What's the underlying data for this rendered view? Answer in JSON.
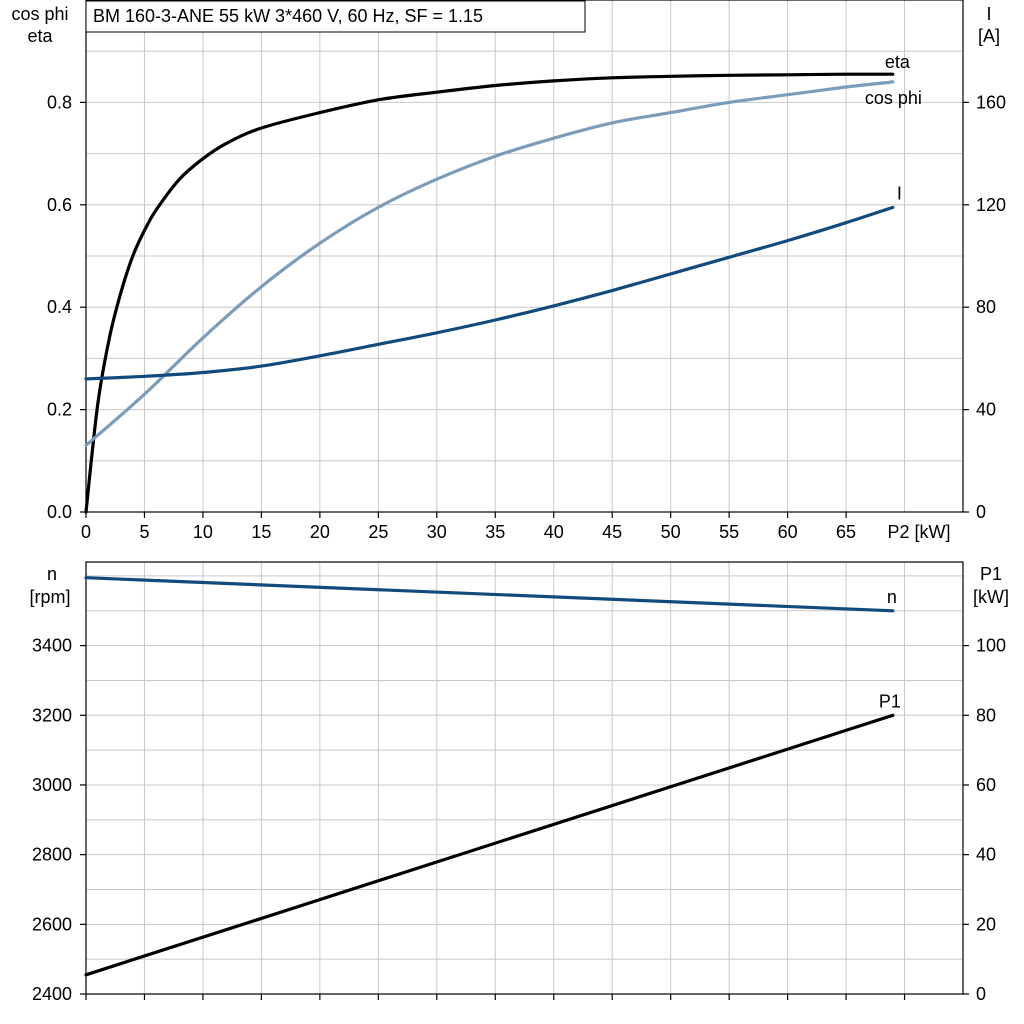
{
  "title": "BM 160-3-ANE   55 kW   3*460 V, 60 Hz, SF = 1.15",
  "colors": {
    "eta": "#000000",
    "cosphi": "#7b9cba",
    "current": "#114a7c",
    "speed": "#114a7c",
    "p1": "#000000",
    "grid": "#c8c8c8"
  },
  "chart_data": [
    {
      "type": "line",
      "xlabel": "P2 [kW]",
      "xlim": [
        0,
        75
      ],
      "x_ticks": [
        "0",
        "5",
        "10",
        "15",
        "20",
        "25",
        "30",
        "35",
        "40",
        "45",
        "50",
        "55",
        "60",
        "65"
      ],
      "y_left": {
        "label_lines": [
          "cos phi",
          "eta"
        ],
        "ylim": [
          0,
          1.0
        ],
        "ticks": [
          "0.0",
          "0.2",
          "0.4",
          "0.6",
          "0.8"
        ]
      },
      "y_right": {
        "label_lines": [
          "I",
          "[A]"
        ],
        "ylim": [
          0,
          200
        ],
        "ticks": [
          "0",
          "40",
          "80",
          "120",
          "160"
        ]
      },
      "grid": true,
      "series": [
        {
          "name": "eta",
          "axis": "left",
          "x": [
            0,
            1,
            2,
            3,
            4,
            5,
            6,
            8,
            10,
            12,
            15,
            20,
            25,
            30,
            35,
            40,
            45,
            50,
            55,
            60,
            65,
            69
          ],
          "y": [
            0.0,
            0.21,
            0.34,
            0.43,
            0.5,
            0.55,
            0.59,
            0.65,
            0.69,
            0.72,
            0.75,
            0.78,
            0.805,
            0.82,
            0.833,
            0.842,
            0.848,
            0.851,
            0.853,
            0.854,
            0.855,
            0.855
          ]
        },
        {
          "name": "cos phi",
          "axis": "left",
          "x": [
            0,
            5,
            10,
            15,
            20,
            25,
            30,
            35,
            40,
            45,
            50,
            55,
            60,
            65,
            69
          ],
          "y": [
            0.13,
            0.23,
            0.34,
            0.44,
            0.525,
            0.595,
            0.65,
            0.695,
            0.73,
            0.76,
            0.78,
            0.8,
            0.815,
            0.83,
            0.84
          ]
        },
        {
          "name": "I",
          "axis": "right",
          "x": [
            0,
            5,
            10,
            15,
            20,
            25,
            30,
            35,
            40,
            45,
            50,
            55,
            60,
            65,
            69
          ],
          "y": [
            52,
            53,
            54.5,
            57,
            61,
            65.5,
            70,
            75,
            80.5,
            86.5,
            93,
            99.5,
            106,
            113,
            119
          ]
        }
      ]
    },
    {
      "type": "line",
      "xlim": [
        0,
        75
      ],
      "y_left": {
        "label_lines": [
          "n",
          "[rpm]"
        ],
        "ylim": [
          2400,
          3640
        ],
        "ticks": [
          "2400",
          "2600",
          "2800",
          "3000",
          "3200",
          "3400"
        ]
      },
      "y_right": {
        "label_lines": [
          "P1",
          "[kW]"
        ],
        "ylim": [
          0,
          124
        ],
        "ticks": [
          "0",
          "20",
          "40",
          "60",
          "80",
          "100"
        ]
      },
      "grid": true,
      "series": [
        {
          "name": "n",
          "axis": "left",
          "x": [
            0,
            69
          ],
          "y": [
            3595,
            3500
          ]
        },
        {
          "name": "P1",
          "axis": "right",
          "x": [
            0,
            69
          ],
          "y": [
            5.5,
            80
          ]
        }
      ]
    }
  ]
}
